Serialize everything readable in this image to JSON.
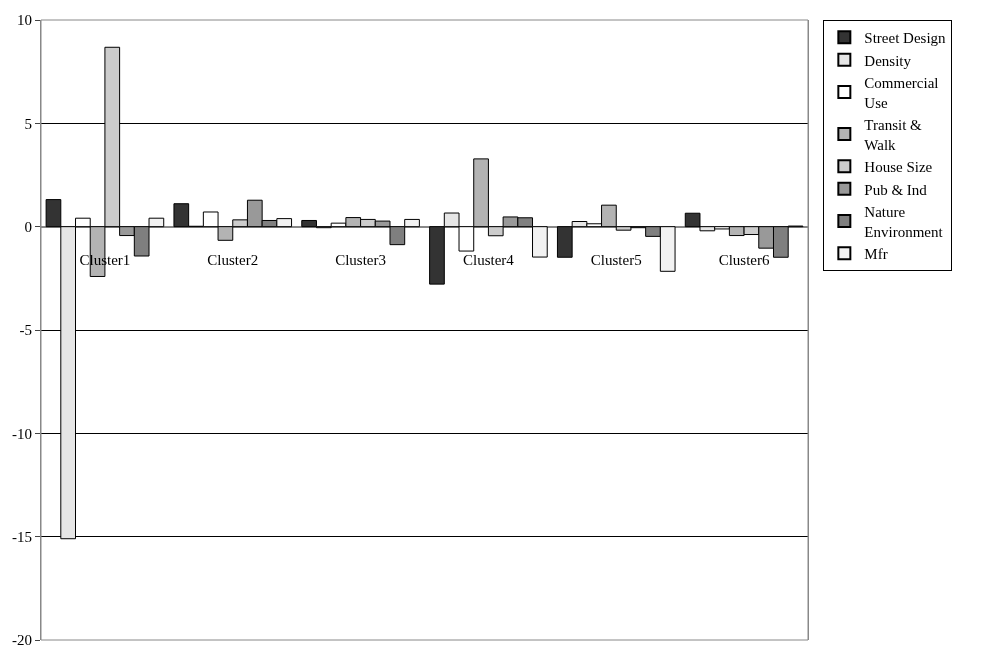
{
  "chart_data": {
    "type": "bar",
    "categories": [
      "Cluster1",
      "Cluster2",
      "Cluster3",
      "Cluster4",
      "Cluster5",
      "Cluster6"
    ],
    "series": [
      {
        "name": "Street Design",
        "color": "#333333",
        "values": [
          1.31,
          1.11,
          0.3,
          -2.78,
          -1.48,
          0.65
        ]
      },
      {
        "name": "Density",
        "color": "#e6e6e6",
        "values": [
          -15.1,
          0.02,
          -0.05,
          0.66,
          0.25,
          -0.2
        ]
      },
      {
        "name": "Commercial Use",
        "color": "#ffffff",
        "values": [
          0.41,
          0.71,
          0.17,
          -1.18,
          0.14,
          -0.11
        ]
      },
      {
        "name": "Transit & Walk",
        "color": "#b3b3b3",
        "values": [
          -2.41,
          -0.66,
          0.44,
          3.28,
          1.04,
          -0.43
        ]
      },
      {
        "name": "House Size",
        "color": "#cccccc",
        "values": [
          8.68,
          0.33,
          0.35,
          -0.44,
          -0.17,
          -0.38
        ]
      },
      {
        "name": "Pub & Ind",
        "color": "#999999",
        "values": [
          -0.43,
          1.28,
          0.27,
          0.47,
          -0.05,
          -1.04
        ]
      },
      {
        "name": "Nature Environment",
        "color": "#7f7f7f",
        "values": [
          -1.42,
          0.3,
          -0.87,
          0.43,
          -0.47,
          -1.48
        ]
      },
      {
        "name": "Mfr",
        "color": "#f2f2f2",
        "values": [
          0.41,
          0.39,
          0.35,
          -1.47,
          -2.16,
          0.03
        ]
      }
    ],
    "ylim": [
      -20,
      10
    ],
    "yticks": [
      -20,
      -15,
      -10,
      -5,
      0,
      5,
      10
    ],
    "grid": "y",
    "legend": "right"
  }
}
